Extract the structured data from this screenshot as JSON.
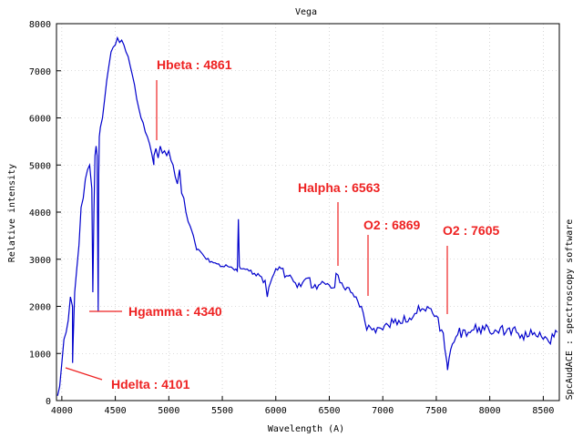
{
  "chart_data": {
    "type": "line",
    "title": "Vega",
    "xlabel": "Wavelength (A)",
    "ylabel": "Relative intensity",
    "side_label": "SpcAudACE : spectroscopy software",
    "xlim": [
      3950,
      8650
    ],
    "ylim": [
      0,
      8000
    ],
    "xticks": [
      4000,
      4500,
      5000,
      5500,
      6000,
      6500,
      7000,
      7500,
      8000,
      8500
    ],
    "yticks": [
      0,
      1000,
      2000,
      3000,
      4000,
      5000,
      6000,
      7000,
      8000
    ],
    "grid": true,
    "line_color": "#0000cc",
    "annotation_color": "#ee2222",
    "series": [
      {
        "x": [
          3960,
          3980,
          4000,
          4020,
          4040,
          4060,
          4080,
          4100,
          4101,
          4105,
          4120,
          4140,
          4160,
          4180,
          4200,
          4220,
          4240,
          4260,
          4280,
          4290,
          4300,
          4310,
          4320,
          4330,
          4340,
          4345,
          4350,
          4360,
          4380,
          4400,
          4420,
          4440,
          4460,
          4480,
          4500,
          4520,
          4540,
          4560,
          4580,
          4600,
          4620,
          4640,
          4660,
          4680,
          4700,
          4720,
          4740,
          4760,
          4780,
          4800,
          4820,
          4840,
          4860,
          4861,
          4880,
          4900,
          4920,
          4940,
          4960,
          4980,
          5000,
          5020,
          5040,
          5060,
          5080,
          5100,
          5120,
          5140,
          5160,
          5180,
          5200,
          5230,
          5260,
          5300,
          5350,
          5400,
          5450,
          5500,
          5550,
          5600,
          5640,
          5650,
          5660,
          5670,
          5700,
          5750,
          5800,
          5850,
          5900,
          5920,
          5950,
          6000,
          6050,
          6100,
          6150,
          6200,
          6250,
          6300,
          6350,
          6400,
          6450,
          6500,
          6550,
          6563,
          6600,
          6650,
          6700,
          6750,
          6800,
          6850,
          6869,
          6900,
          6950,
          7000,
          7050,
          7100,
          7150,
          7200,
          7250,
          7300,
          7350,
          7400,
          7450,
          7500,
          7550,
          7580,
          7600,
          7605,
          7620,
          7650,
          7700,
          7750,
          7800,
          7850,
          7900,
          7950,
          8000,
          8050,
          8100,
          8150,
          8200,
          8250,
          8300,
          8350,
          8400,
          8450,
          8500,
          8550,
          8600,
          8630
        ],
        "y": [
          100,
          300,
          800,
          1300,
          1450,
          1700,
          2200,
          2000,
          800,
          1200,
          2300,
          2800,
          3300,
          4100,
          4300,
          4700,
          4900,
          5000,
          4500,
          2300,
          4000,
          5200,
          5400,
          5200,
          1900,
          4800,
          5600,
          5800,
          6000,
          6400,
          6800,
          7100,
          7400,
          7500,
          7550,
          7700,
          7600,
          7650,
          7550,
          7400,
          7300,
          7100,
          6900,
          6700,
          6400,
          6200,
          6000,
          5900,
          5700,
          5600,
          5450,
          5250,
          5000,
          5200,
          5350,
          5150,
          5400,
          5250,
          5300,
          5200,
          5300,
          5100,
          5000,
          4750,
          4600,
          4900,
          4400,
          4300,
          4000,
          3800,
          3700,
          3500,
          3200,
          3150,
          3000,
          2950,
          2900,
          2850,
          2850,
          2800,
          2750,
          3850,
          2850,
          2800,
          2800,
          2750,
          2700,
          2650,
          2550,
          2200,
          2500,
          2800,
          2800,
          2650,
          2600,
          2400,
          2500,
          2600,
          2400,
          2450,
          2500,
          2450,
          2400,
          2700,
          2500,
          2350,
          2300,
          2200,
          2000,
          1500,
          1600,
          1500,
          1550,
          1500,
          1600,
          1650,
          1700,
          1800,
          1750,
          1850,
          1900,
          1900,
          1950,
          1800,
          1500,
          1100,
          800,
          650,
          900,
          1200,
          1400,
          1500,
          1450,
          1500,
          1550,
          1500,
          1450,
          1500,
          1550,
          1450,
          1400,
          1450,
          1400,
          1350,
          1400,
          1350,
          1300,
          1250,
          1350,
          1450
        ]
      }
    ],
    "annotations": [
      {
        "label": "Hdelta : 4101",
        "x": 4101,
        "y": 700
      },
      {
        "label": "Hgamma : 4340",
        "x": 4340,
        "y": 1900
      },
      {
        "label": "Hbeta : 4861",
        "x": 4861,
        "y": 5500
      },
      {
        "label": "Halpha : 6563",
        "x": 6563,
        "y": 2850
      },
      {
        "label": "O2 : 6869",
        "x": 6869,
        "y": 2200
      },
      {
        "label": "O2 : 7605",
        "x": 7605,
        "y": 1850
      }
    ]
  }
}
